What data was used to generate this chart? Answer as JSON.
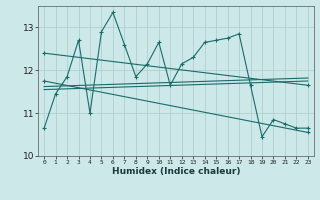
{
  "xlabel": "Humidex (Indice chaleur)",
  "bg_color": "#cce8e8",
  "line_color": "#1a6b6b",
  "grid_color": "#aacccc",
  "xlim": [
    -0.5,
    23.5
  ],
  "ylim": [
    10,
    13.5
  ],
  "yticks": [
    10,
    11,
    12,
    13
  ],
  "xticks": [
    0,
    1,
    2,
    3,
    4,
    5,
    6,
    7,
    8,
    9,
    10,
    11,
    12,
    13,
    14,
    15,
    16,
    17,
    18,
    19,
    20,
    21,
    22,
    23
  ],
  "series1_x": [
    0,
    1,
    2,
    3,
    4,
    5,
    6,
    7,
    8,
    9,
    10,
    11,
    12,
    13,
    14,
    15,
    16,
    17,
    18,
    19,
    20,
    21,
    22,
    23
  ],
  "series1_y": [
    10.65,
    11.45,
    11.85,
    12.7,
    11.0,
    12.9,
    13.35,
    12.6,
    11.85,
    12.15,
    12.65,
    11.65,
    12.15,
    12.3,
    12.65,
    12.7,
    12.75,
    12.85,
    11.65,
    10.45,
    10.85,
    10.75,
    10.65,
    10.65
  ],
  "series2_x": [
    0,
    23
  ],
  "series2_y": [
    12.4,
    11.65
  ],
  "series3_x": [
    0,
    23
  ],
  "series3_y": [
    11.75,
    10.55
  ],
  "series4_x": [
    0,
    23
  ],
  "series4_y": [
    11.55,
    11.75
  ],
  "series5_x": [
    0,
    23
  ],
  "series5_y": [
    11.62,
    11.82
  ]
}
